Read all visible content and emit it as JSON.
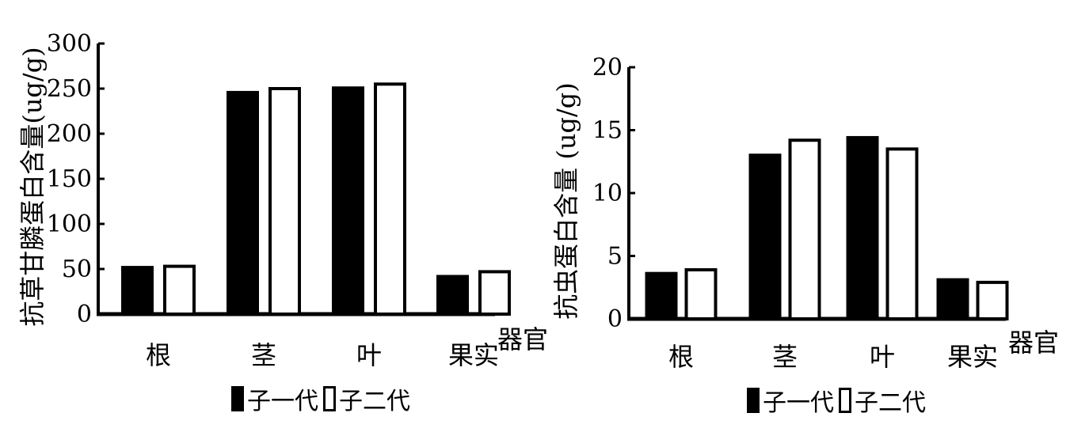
{
  "chart_data": [
    {
      "type": "bar",
      "ylabel": "抗草甘膦蛋白含量(ug/g)",
      "xlabel": "器官",
      "categories": [
        "根",
        "茎",
        "叶",
        "果实"
      ],
      "series": [
        {
          "name": "子一代",
          "values": [
            53,
            247,
            252,
            43
          ],
          "color": "#000000",
          "fill": "solid"
        },
        {
          "name": "子二代",
          "values": [
            53,
            250,
            255,
            47
          ],
          "color": "#ffffff",
          "fill": "hollow"
        }
      ],
      "ylim": [
        0,
        300
      ],
      "yticks": [
        0,
        50,
        100,
        150,
        200,
        250,
        300
      ],
      "grid": false,
      "legend": "bottom"
    },
    {
      "type": "bar",
      "ylabel": "抗虫蛋白含量 (ug/g)",
      "xlabel": "器官",
      "categories": [
        "根",
        "茎",
        "叶",
        "果实"
      ],
      "series": [
        {
          "name": "子一代",
          "values": [
            3.7,
            13.1,
            14.5,
            3.2
          ],
          "color": "#000000",
          "fill": "solid"
        },
        {
          "name": "子二代",
          "values": [
            3.9,
            14.2,
            13.5,
            2.9
          ],
          "color": "#ffffff",
          "fill": "hollow"
        }
      ],
      "ylim": [
        0,
        20
      ],
      "yticks": [
        0,
        5,
        10,
        15,
        20
      ],
      "grid": false,
      "legend": "bottom"
    }
  ]
}
